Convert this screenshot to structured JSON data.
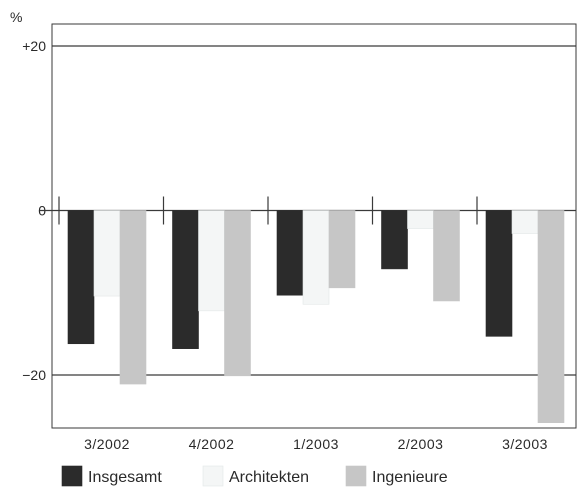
{
  "chart_data": {
    "type": "bar",
    "ylabel": "%",
    "ylim": [
      -26,
      24
    ],
    "yticks": [
      {
        "value": 20,
        "label": "+20"
      },
      {
        "value": 0,
        "label": "0"
      },
      {
        "value": -20,
        "label": "−20"
      }
    ],
    "categories": [
      "3/2002",
      "4/2002",
      "1/2003",
      "2/2003",
      "3/2003"
    ],
    "series": [
      {
        "name": "Insgesamt",
        "color": "#2b2b2b",
        "values": [
          -16.2,
          -16.8,
          -10.3,
          -7.1,
          -15.3
        ]
      },
      {
        "name": "Architekten",
        "color": "#f4f6f6",
        "values": [
          -10.4,
          -12.2,
          -11.4,
          -2.2,
          -2.8
        ]
      },
      {
        "name": "Ingenieure",
        "color": "#c6c6c6",
        "values": [
          -21.1,
          -20.1,
          -9.4,
          -11.0,
          -25.8
        ]
      }
    ],
    "grid": {
      "horizontal_lines_at": [
        20,
        -20
      ]
    },
    "legend_position": "bottom"
  }
}
